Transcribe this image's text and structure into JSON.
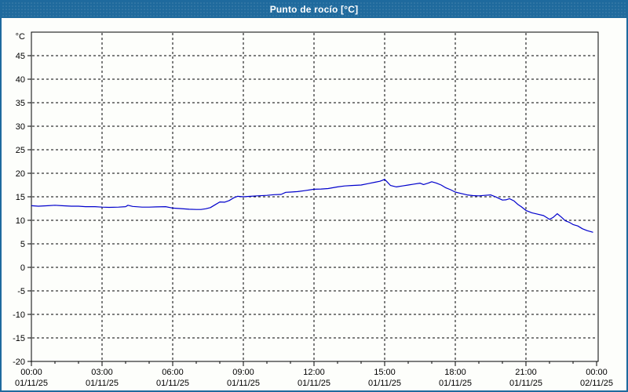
{
  "window": {
    "title": "Punto de rocío [°C]"
  },
  "colors": {
    "titlebar_bg": "#1f6a9d",
    "border": "#1e6a9e",
    "plot_bg": "#fdfefb",
    "axis": "#000000",
    "grid": "#000000",
    "text": "#000000",
    "line": "#0000cc"
  },
  "chart_data": {
    "type": "line",
    "title": "Punto de rocío [°C]",
    "ylabel": "°C",
    "ylim": [
      -20,
      50
    ],
    "ytick_step": 5,
    "yticks": [
      45,
      40,
      35,
      30,
      25,
      20,
      15,
      10,
      5,
      0,
      -5,
      -10,
      -15,
      -20
    ],
    "grid": true,
    "legend": "none",
    "x_hours_span": 24,
    "x_minor_tick_hours": 1,
    "xticks": [
      {
        "hour": 0,
        "time": "00:00",
        "date": "01/11/25"
      },
      {
        "hour": 3,
        "time": "03:00",
        "date": "01/11/25"
      },
      {
        "hour": 6,
        "time": "06:00",
        "date": "01/11/25"
      },
      {
        "hour": 9,
        "time": "09:00",
        "date": "01/11/25"
      },
      {
        "hour": 12,
        "time": "12:00",
        "date": "01/11/25"
      },
      {
        "hour": 15,
        "time": "15:00",
        "date": "01/11/25"
      },
      {
        "hour": 18,
        "time": "18:00",
        "date": "01/11/25"
      },
      {
        "hour": 21,
        "time": "21:00",
        "date": "01/11/25"
      },
      {
        "hour": 24,
        "time": "00:00",
        "date": "02/11/25"
      }
    ],
    "series": [
      {
        "name": "Punto de rocío",
        "color": "#0000cc",
        "points": [
          [
            0,
            13.1
          ],
          [
            0.3,
            13.0
          ],
          [
            0.7,
            13.1
          ],
          [
            1,
            13.2
          ],
          [
            1.3,
            13.1
          ],
          [
            1.7,
            13.0
          ],
          [
            2,
            13.0
          ],
          [
            2.3,
            12.9
          ],
          [
            2.7,
            12.9
          ],
          [
            3,
            12.8
          ],
          [
            3.3,
            12.75
          ],
          [
            3.7,
            12.8
          ],
          [
            4,
            12.9
          ],
          [
            4.1,
            13.2
          ],
          [
            4.3,
            12.95
          ],
          [
            4.7,
            12.8
          ],
          [
            5,
            12.8
          ],
          [
            5.3,
            12.85
          ],
          [
            5.7,
            12.9
          ],
          [
            5.9,
            12.7
          ],
          [
            6,
            12.6
          ],
          [
            6.3,
            12.5
          ],
          [
            6.7,
            12.35
          ],
          [
            7,
            12.3
          ],
          [
            7.2,
            12.3
          ],
          [
            7.4,
            12.45
          ],
          [
            7.6,
            12.7
          ],
          [
            7.8,
            13.3
          ],
          [
            8,
            13.9
          ],
          [
            8.2,
            13.85
          ],
          [
            8.4,
            14.2
          ],
          [
            8.6,
            14.8
          ],
          [
            8.75,
            15.1
          ],
          [
            9,
            15.0
          ],
          [
            9.3,
            15.1
          ],
          [
            9.6,
            15.2
          ],
          [
            10,
            15.3
          ],
          [
            10.3,
            15.45
          ],
          [
            10.6,
            15.5
          ],
          [
            10.8,
            15.95
          ],
          [
            11,
            16.0
          ],
          [
            11.3,
            16.1
          ],
          [
            11.6,
            16.3
          ],
          [
            12,
            16.6
          ],
          [
            12.3,
            16.65
          ],
          [
            12.6,
            16.75
          ],
          [
            13,
            17.1
          ],
          [
            13.3,
            17.3
          ],
          [
            13.6,
            17.4
          ],
          [
            14,
            17.5
          ],
          [
            14.3,
            17.8
          ],
          [
            14.6,
            18.1
          ],
          [
            14.8,
            18.3
          ],
          [
            15,
            18.7
          ],
          [
            15.1,
            18.2
          ],
          [
            15.25,
            17.4
          ],
          [
            15.5,
            17.1
          ],
          [
            15.75,
            17.3
          ],
          [
            16,
            17.5
          ],
          [
            16.25,
            17.7
          ],
          [
            16.5,
            17.9
          ],
          [
            16.65,
            17.6
          ],
          [
            16.85,
            17.9
          ],
          [
            17,
            18.2
          ],
          [
            17.2,
            17.9
          ],
          [
            17.4,
            17.5
          ],
          [
            17.6,
            16.9
          ],
          [
            17.8,
            16.5
          ],
          [
            18,
            16.0
          ],
          [
            18.25,
            15.7
          ],
          [
            18.5,
            15.4
          ],
          [
            18.75,
            15.25
          ],
          [
            19,
            15.2
          ],
          [
            19.25,
            15.3
          ],
          [
            19.5,
            15.4
          ],
          [
            19.75,
            14.9
          ],
          [
            20,
            14.3
          ],
          [
            20.15,
            14.35
          ],
          [
            20.3,
            14.6
          ],
          [
            20.5,
            14.1
          ],
          [
            20.65,
            13.4
          ],
          [
            20.8,
            12.9
          ],
          [
            21,
            12.1
          ],
          [
            21.25,
            11.6
          ],
          [
            21.5,
            11.3
          ],
          [
            21.75,
            11.0
          ],
          [
            22,
            10.2
          ],
          [
            22.15,
            10.6
          ],
          [
            22.33,
            11.4
          ],
          [
            22.5,
            10.7
          ],
          [
            22.67,
            9.9
          ],
          [
            22.83,
            9.6
          ],
          [
            23,
            9.1
          ],
          [
            23.2,
            8.8
          ],
          [
            23.4,
            8.2
          ],
          [
            23.6,
            7.8
          ],
          [
            23.75,
            7.6
          ],
          [
            23.85,
            7.45
          ]
        ]
      }
    ]
  }
}
